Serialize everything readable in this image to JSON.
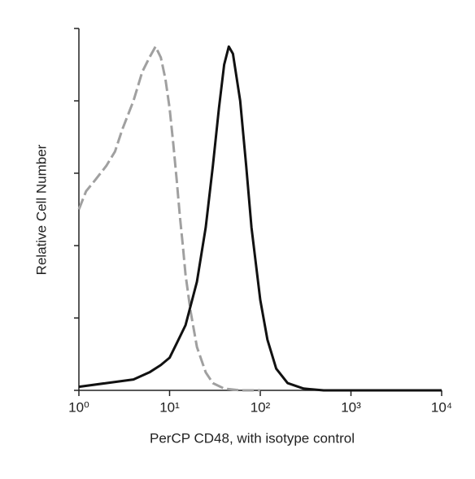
{
  "chart_data": {
    "type": "line",
    "x_label": "PerCP CD48, with isotype control",
    "y_label": "Relative Cell Number",
    "xscale": "log",
    "xlim": [
      1,
      10000
    ],
    "xticks": [
      {
        "value": 1,
        "label": "10⁰"
      },
      {
        "value": 10,
        "label": "10¹"
      },
      {
        "value": 100,
        "label": "10²"
      },
      {
        "value": 1000,
        "label": "10³"
      },
      {
        "value": 10000,
        "label": "10⁴"
      }
    ],
    "ylim": [
      0,
      100
    ],
    "yticks": [
      0,
      20,
      40,
      60,
      80,
      100
    ],
    "series": [
      {
        "color": "#a0a0a0",
        "dashed": true,
        "x": [
          1,
          1.2,
          1.5,
          2,
          2.5,
          3,
          4,
          5,
          6,
          7,
          8,
          9,
          10,
          11,
          12,
          13,
          14,
          15,
          17,
          20,
          25,
          30,
          40,
          60,
          100
        ],
        "values": [
          50,
          55,
          58,
          62,
          66,
          72,
          80,
          88,
          92,
          95,
          92,
          86,
          78,
          68,
          58,
          48,
          40,
          32,
          22,
          12,
          5,
          2,
          0.5,
          0,
          0
        ]
      },
      {
        "color": "#111111",
        "dashed": false,
        "x": [
          1,
          2,
          4,
          6,
          8,
          10,
          12,
          15,
          20,
          25,
          30,
          35,
          40,
          45,
          50,
          60,
          70,
          80,
          100,
          120,
          150,
          200,
          300,
          500,
          10000
        ],
        "values": [
          1,
          2,
          3,
          5,
          7,
          9,
          13,
          18,
          30,
          45,
          62,
          78,
          90,
          95,
          93,
          80,
          62,
          45,
          25,
          14,
          6,
          2,
          0.5,
          0,
          0
        ]
      }
    ]
  }
}
